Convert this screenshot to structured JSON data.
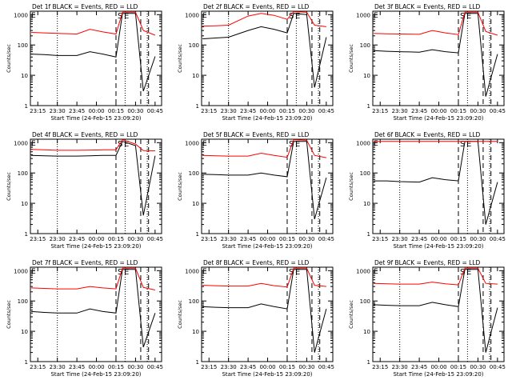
{
  "panel_common": {
    "title_suffix": "BLACK = Events, RED = LLD",
    "xlabel": "Start Time (24-Feb-15 23:09:20)",
    "ylabel": "Counts/sec",
    "x_ticks": [
      "23:15",
      "23:30",
      "23:45",
      "00:00",
      "00:15",
      "00:30",
      "00:45"
    ],
    "y_ticks": [
      "1",
      "10",
      "100",
      "1000"
    ],
    "marker_E": "E",
    "marker_S": "S",
    "marker_E2": "E"
  },
  "colors": {
    "events": "#000000",
    "lld": "#ff0000",
    "axis": "#000000"
  },
  "chart_data": [
    {
      "type": "line",
      "title": "Det 1f",
      "yscale": "log",
      "ylim": [
        1,
        1300
      ],
      "xlim": [
        "23:09:20",
        "00:50:00"
      ],
      "series": [
        {
          "name": "Events",
          "x": [
            "23:10",
            "23:20",
            "23:30",
            "23:45",
            "23:55",
            "00:05",
            "00:15",
            "00:20",
            "00:30",
            "00:36",
            "00:45"
          ],
          "values": [
            50,
            48,
            45,
            45,
            60,
            50,
            40,
            1100,
            1100,
            3,
            42
          ]
        },
        {
          "name": "LLD",
          "x": [
            "23:10",
            "23:20",
            "23:30",
            "23:45",
            "23:55",
            "00:05",
            "00:15",
            "00:20",
            "00:30",
            "00:36",
            "00:45"
          ],
          "values": [
            260,
            250,
            240,
            230,
            330,
            270,
            230,
            1200,
            1200,
            300,
            210
          ]
        }
      ]
    },
    {
      "type": "line",
      "title": "Det 2f",
      "yscale": "log",
      "ylim": [
        1,
        1300
      ],
      "xlim": [
        "23:09:20",
        "00:50:00"
      ],
      "series": [
        {
          "name": "Events",
          "x": [
            "23:10",
            "23:20",
            "23:30",
            "23:45",
            "23:55",
            "00:05",
            "00:15",
            "00:20",
            "00:30",
            "00:36",
            "00:45"
          ],
          "values": [
            160,
            170,
            180,
            300,
            400,
            330,
            250,
            1100,
            1000,
            4,
            180
          ]
        },
        {
          "name": "LLD",
          "x": [
            "23:10",
            "23:20",
            "23:30",
            "23:45",
            "23:55",
            "00:05",
            "00:15",
            "00:20",
            "00:30",
            "00:36",
            "00:45"
          ],
          "values": [
            420,
            430,
            450,
            900,
            1100,
            950,
            700,
            1250,
            1200,
            450,
            400
          ]
        }
      ]
    },
    {
      "type": "line",
      "title": "Det 3f",
      "yscale": "log",
      "ylim": [
        1,
        1300
      ],
      "xlim": [
        "23:09:20",
        "00:50:00"
      ],
      "series": [
        {
          "name": "Events",
          "x": [
            "23:10",
            "23:20",
            "23:30",
            "23:45",
            "23:55",
            "00:05",
            "00:15",
            "00:20",
            "00:30",
            "00:36",
            "00:45"
          ],
          "values": [
            65,
            62,
            60,
            58,
            70,
            60,
            55,
            1100,
            1100,
            2,
            50
          ]
        },
        {
          "name": "LLD",
          "x": [
            "23:10",
            "23:20",
            "23:30",
            "23:45",
            "23:55",
            "00:05",
            "00:15",
            "00:20",
            "00:30",
            "00:36",
            "00:45"
          ],
          "values": [
            240,
            235,
            230,
            225,
            300,
            250,
            220,
            1200,
            1200,
            280,
            210
          ]
        }
      ]
    },
    {
      "type": "line",
      "title": "Det 4f",
      "yscale": "log",
      "ylim": [
        1,
        1300
      ],
      "xlim": [
        "23:09:20",
        "00:50:00"
      ],
      "series": [
        {
          "name": "Events",
          "x": [
            "23:10",
            "23:20",
            "23:30",
            "23:45",
            "23:55",
            "00:05",
            "00:15",
            "00:20",
            "00:30",
            "00:36",
            "00:45"
          ],
          "values": [
            380,
            370,
            360,
            360,
            370,
            380,
            380,
            1100,
            800,
            4,
            370
          ]
        },
        {
          "name": "LLD",
          "x": [
            "23:10",
            "23:20",
            "23:30",
            "23:45",
            "23:55",
            "00:05",
            "00:15",
            "00:20",
            "00:30",
            "00:36",
            "00:45"
          ],
          "values": [
            600,
            580,
            560,
            560,
            570,
            580,
            580,
            1250,
            900,
            550,
            540
          ]
        }
      ]
    },
    {
      "type": "line",
      "title": "Det 5f",
      "yscale": "log",
      "ylim": [
        1,
        1300
      ],
      "xlim": [
        "23:09:20",
        "00:50:00"
      ],
      "series": [
        {
          "name": "Events",
          "x": [
            "23:10",
            "23:20",
            "23:30",
            "23:45",
            "23:55",
            "00:05",
            "00:15",
            "00:20",
            "00:30",
            "00:36",
            "00:45"
          ],
          "values": [
            90,
            88,
            85,
            85,
            100,
            85,
            75,
            1100,
            1100,
            3,
            70
          ]
        },
        {
          "name": "LLD",
          "x": [
            "23:10",
            "23:20",
            "23:30",
            "23:45",
            "23:55",
            "00:05",
            "00:15",
            "00:20",
            "00:30",
            "00:36",
            "00:45"
          ],
          "values": [
            380,
            370,
            360,
            360,
            450,
            380,
            330,
            1250,
            1200,
            380,
            320
          ]
        }
      ]
    },
    {
      "type": "line",
      "title": "Det 6f",
      "yscale": "log",
      "ylim": [
        1,
        1300
      ],
      "xlim": [
        "23:09:20",
        "00:50:00"
      ],
      "series": [
        {
          "name": "Events",
          "x": [
            "23:10",
            "23:20",
            "23:30",
            "23:45",
            "23:55",
            "00:05",
            "00:15",
            "00:20",
            "00:30",
            "00:36",
            "00:45"
          ],
          "values": [
            55,
            55,
            52,
            50,
            70,
            60,
            55,
            1100,
            1100,
            2,
            50
          ]
        },
        {
          "name": "LLD",
          "x": [
            "23:10",
            "23:20",
            "23:30",
            "23:45",
            "23:55",
            "00:05",
            "00:15",
            "00:20",
            "00:30",
            "00:36",
            "00:45"
          ],
          "values": [
            1100,
            1100,
            1100,
            1100,
            1100,
            1100,
            1100,
            1100,
            1100,
            1100,
            1100
          ]
        }
      ]
    },
    {
      "type": "line",
      "title": "Det 7f",
      "yscale": "log",
      "ylim": [
        1,
        1300
      ],
      "xlim": [
        "23:09:20",
        "00:50:00"
      ],
      "series": [
        {
          "name": "Events",
          "x": [
            "23:10",
            "23:20",
            "23:30",
            "23:45",
            "23:55",
            "00:05",
            "00:15",
            "00:20",
            "00:30",
            "00:36",
            "00:45"
          ],
          "values": [
            45,
            42,
            40,
            40,
            55,
            45,
            40,
            1100,
            1100,
            3,
            40
          ]
        },
        {
          "name": "LLD",
          "x": [
            "23:10",
            "23:20",
            "23:30",
            "23:45",
            "23:55",
            "00:05",
            "00:15",
            "00:20",
            "00:30",
            "00:36",
            "00:45"
          ],
          "values": [
            270,
            260,
            250,
            250,
            300,
            270,
            250,
            1200,
            1200,
            280,
            230
          ]
        }
      ]
    },
    {
      "type": "line",
      "title": "Det 8f",
      "yscale": "log",
      "ylim": [
        1,
        1300
      ],
      "xlim": [
        "23:09:20",
        "00:50:00"
      ],
      "series": [
        {
          "name": "Events",
          "x": [
            "23:10",
            "23:20",
            "23:30",
            "23:45",
            "23:55",
            "00:05",
            "00:15",
            "00:20",
            "00:30",
            "00:36",
            "00:45"
          ],
          "values": [
            65,
            62,
            60,
            60,
            80,
            65,
            55,
            1100,
            1100,
            2,
            55
          ]
        },
        {
          "name": "LLD",
          "x": [
            "23:10",
            "23:20",
            "23:30",
            "23:45",
            "23:55",
            "00:05",
            "00:15",
            "00:20",
            "00:30",
            "00:36",
            "00:45"
          ],
          "values": [
            330,
            320,
            310,
            310,
            380,
            320,
            290,
            1200,
            1200,
            330,
            300
          ]
        }
      ]
    },
    {
      "type": "line",
      "title": "Det 9f",
      "yscale": "log",
      "ylim": [
        1,
        1300
      ],
      "xlim": [
        "23:09:20",
        "00:50:00"
      ],
      "series": [
        {
          "name": "Events",
          "x": [
            "23:10",
            "23:20",
            "23:30",
            "23:45",
            "23:55",
            "00:05",
            "00:15",
            "00:20",
            "00:30",
            "00:36",
            "00:45"
          ],
          "values": [
            75,
            72,
            70,
            70,
            90,
            75,
            65,
            1100,
            1100,
            2,
            60
          ]
        },
        {
          "name": "LLD",
          "x": [
            "23:10",
            "23:20",
            "23:30",
            "23:45",
            "23:55",
            "00:05",
            "00:15",
            "00:20",
            "00:30",
            "00:36",
            "00:45"
          ],
          "values": [
            380,
            370,
            360,
            360,
            420,
            370,
            340,
            1200,
            1200,
            380,
            360
          ]
        }
      ]
    }
  ],
  "event_markers": {
    "dotted_lines": [
      "23:30",
      "00:22",
      "00:39"
    ],
    "dashed_lines": [
      "00:15",
      "00:34",
      "00:40"
    ]
  }
}
